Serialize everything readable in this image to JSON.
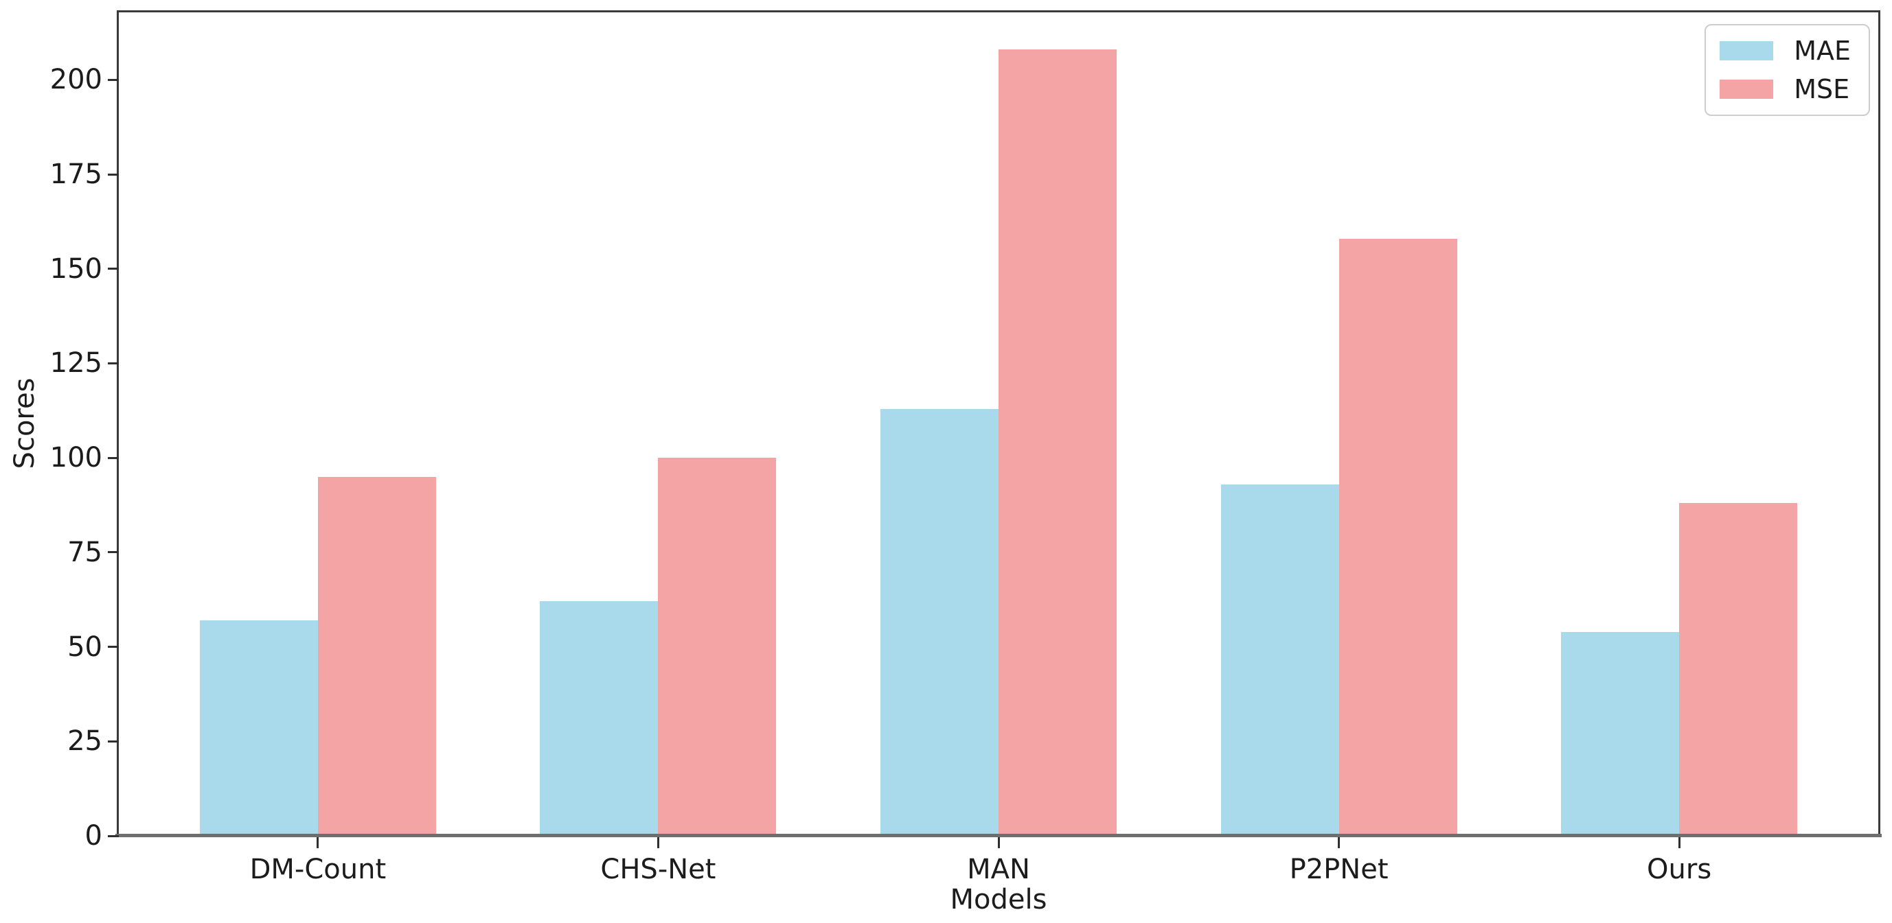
{
  "chart_data": {
    "type": "bar",
    "title": "",
    "xlabel": "Models",
    "ylabel": "Scores",
    "categories": [
      "DM-Count",
      "CHS-Net",
      "MAN",
      "P2PNet",
      "Ours"
    ],
    "series": [
      {
        "name": "MAE",
        "color": "#a9daec",
        "values": [
          57,
          62,
          113,
          93,
          54
        ]
      },
      {
        "name": "MSE",
        "color": "#f4a4a4",
        "values": [
          95,
          100,
          208,
          158,
          88
        ]
      }
    ],
    "yticks": [
      0,
      25,
      50,
      75,
      100,
      125,
      150,
      175,
      200
    ],
    "ylim": [
      0,
      218.4
    ],
    "grid": false,
    "bar_width_ratio": 0.35,
    "legend": {
      "position": "upper-right",
      "entries": [
        "MAE",
        "MSE"
      ]
    },
    "colors": {
      "axis": "#3a3a3a",
      "baseline": "#6e6e6e",
      "text": "#1c1c1c",
      "background": "#ffffff"
    }
  }
}
